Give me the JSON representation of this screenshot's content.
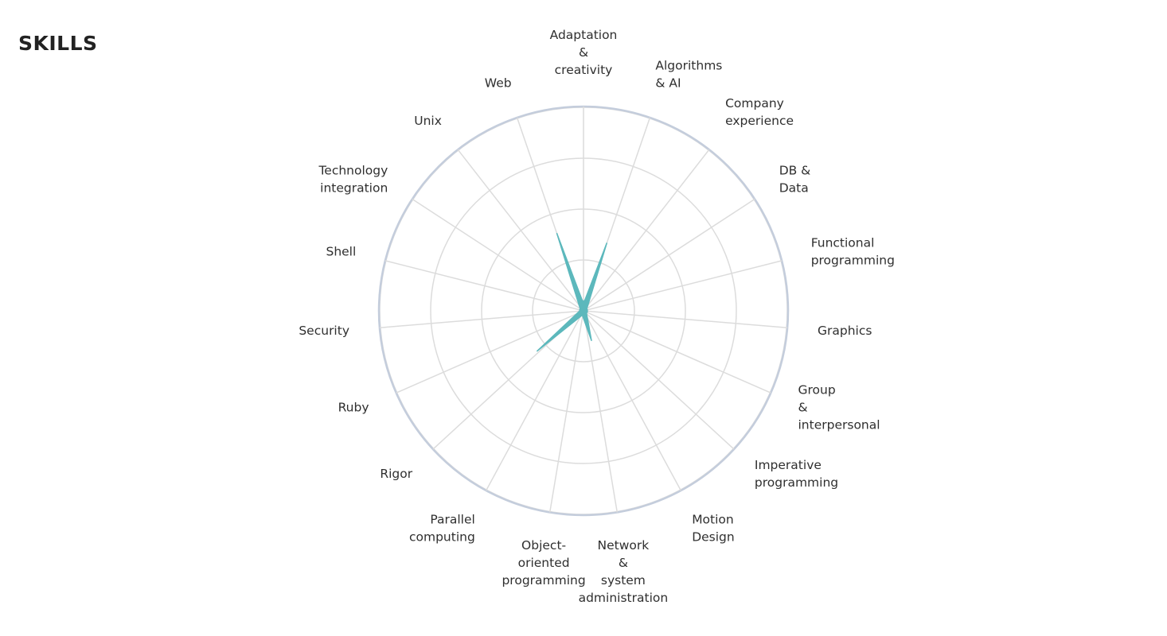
{
  "page": {
    "title": "SKILLS"
  },
  "chart_data": {
    "type": "radar",
    "title": "SKILLS",
    "categories": [
      "Adaptation & creativity",
      "Algorithms & AI",
      "Company experience",
      "DB & Data",
      "Functional programming",
      "Graphics",
      "Group & interpersonal",
      "Imperative programming",
      "Motion Design",
      "Network & system administration",
      "Object-oriented programming",
      "Parallel computing",
      "Rigor",
      "Ruby",
      "Security",
      "Shell",
      "Technology integration",
      "Unix",
      "Web"
    ],
    "label_lines": [
      [
        "Adaptation",
        "&",
        "creativity"
      ],
      [
        "Algorithms",
        "& AI"
      ],
      [
        "Company",
        "experience"
      ],
      [
        "DB &",
        "Data"
      ],
      [
        "Functional",
        "programming"
      ],
      [
        "Graphics"
      ],
      [
        "Group",
        "&",
        "interpersonal"
      ],
      [
        "Imperative",
        "programming"
      ],
      [
        "Motion",
        "Design"
      ],
      [
        "Network",
        "&",
        "system",
        "administration"
      ],
      [
        "Object-",
        "oriented",
        "programming"
      ],
      [
        "Parallel",
        "computing"
      ],
      [
        "Rigor"
      ],
      [
        "Ruby"
      ],
      [
        "Security"
      ],
      [
        "Shell"
      ],
      [
        "Technology",
        "integration"
      ],
      [
        "Unix"
      ],
      [
        "Web"
      ]
    ],
    "series": [
      {
        "values": [
          0.05,
          0.35,
          0.02,
          0.02,
          0.02,
          0.02,
          0.02,
          0.02,
          0.02,
          0.05,
          0.02,
          0.02,
          0.02,
          0.02,
          0.02,
          0.02,
          0.02,
          0.02,
          0.4
        ]
      }
    ],
    "extra_spikes": [
      {
        "angle_deg": 229,
        "value": 0.3
      },
      {
        "angle_deg": 165,
        "value": 0.15
      }
    ],
    "rlim": [
      0,
      1
    ],
    "rings": 4,
    "colors": {
      "series": "#5cb8bc",
      "grid": "#dcdcdc",
      "outer_ring": "#c4cddc"
    }
  }
}
